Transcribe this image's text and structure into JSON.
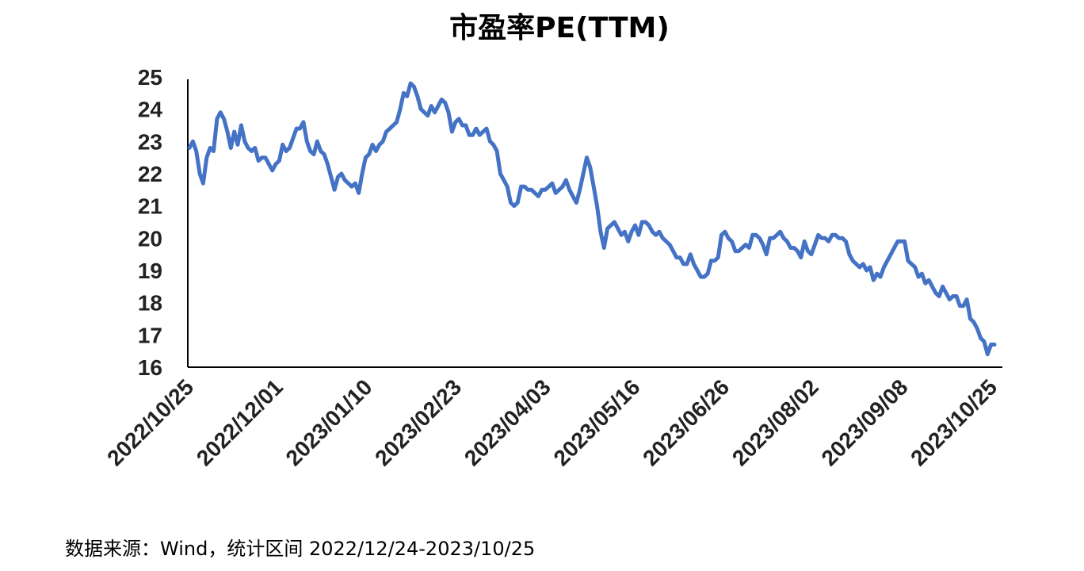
{
  "chart_data": {
    "type": "line",
    "title": "市盈率PE(TTM)",
    "xlabel": "",
    "ylabel": "",
    "ylim": [
      16,
      25
    ],
    "yticks": [
      25,
      24,
      23,
      22,
      21,
      20,
      19,
      18,
      17,
      16
    ],
    "xtick_labels": [
      "2022/10/25",
      "2022/12/01",
      "2023/01/10",
      "2023/02/23",
      "2023/04/03",
      "2023/05/16",
      "2023/06/26",
      "2023/08/02",
      "2023/09/08",
      "2023/10/25"
    ],
    "grid": false,
    "legend": "none",
    "line_color": "#4472C4",
    "series": [
      {
        "values": [
          22.8,
          23.0,
          22.7,
          22.0,
          21.7,
          22.5,
          22.8,
          22.7,
          23.7,
          23.9,
          23.7,
          23.3,
          22.8,
          23.3,
          22.9,
          23.5,
          23.0,
          22.8,
          22.7,
          22.8,
          22.4,
          22.5,
          22.5,
          22.3,
          22.1,
          22.3,
          22.4,
          22.9,
          22.7,
          22.8,
          23.1,
          23.4,
          23.4,
          23.6,
          23.0,
          22.7,
          22.6,
          23.0,
          22.7,
          22.6,
          22.3,
          21.9,
          21.5,
          21.9,
          22.0,
          21.8,
          21.7,
          21.6,
          21.7,
          21.4,
          22.0,
          22.5,
          22.6,
          22.9,
          22.7,
          22.9,
          23.0,
          23.3,
          23.4,
          23.5,
          23.6,
          24.0,
          24.5,
          24.4,
          24.8,
          24.7,
          24.4,
          24.0,
          23.9,
          23.8,
          24.1,
          23.9,
          24.1,
          24.3,
          24.2,
          23.9,
          23.3,
          23.6,
          23.7,
          23.5,
          23.5,
          23.2,
          23.2,
          23.4,
          23.2,
          23.3,
          23.4,
          23.0,
          22.9,
          22.7,
          22.0,
          21.8,
          21.6,
          21.1,
          21.0,
          21.1,
          21.6,
          21.6,
          21.5,
          21.5,
          21.4,
          21.3,
          21.5,
          21.5,
          21.6,
          21.7,
          21.4,
          21.5,
          21.6,
          21.8,
          21.5,
          21.3,
          21.1,
          21.5,
          22.0,
          22.5,
          22.2,
          21.6,
          21.0,
          20.2,
          19.7,
          20.3,
          20.4,
          20.5,
          20.3,
          20.1,
          20.2,
          19.9,
          20.2,
          20.4,
          20.1,
          20.5,
          20.5,
          20.4,
          20.2,
          20.1,
          20.2,
          20.0,
          19.9,
          19.8,
          19.6,
          19.4,
          19.4,
          19.2,
          19.2,
          19.5,
          19.2,
          19.0,
          18.8,
          18.8,
          18.9,
          19.3,
          19.3,
          19.4,
          20.1,
          20.2,
          20.0,
          19.9,
          19.6,
          19.6,
          19.7,
          19.8,
          19.7,
          20.1,
          20.1,
          20.0,
          19.8,
          19.5,
          20.0,
          20.0,
          20.1,
          20.2,
          20.0,
          19.9,
          19.7,
          19.7,
          19.6,
          19.4,
          19.9,
          19.6,
          19.5,
          19.8,
          20.1,
          20.0,
          20.0,
          19.9,
          20.1,
          20.1,
          20.0,
          20.0,
          19.9,
          19.5,
          19.3,
          19.2,
          19.1,
          19.2,
          19.0,
          19.1,
          18.7,
          18.9,
          18.8,
          19.1,
          19.3,
          19.5,
          19.7,
          19.9,
          19.9,
          19.9,
          19.3,
          19.2,
          19.1,
          18.8,
          18.9,
          18.6,
          18.7,
          18.5,
          18.3,
          18.2,
          18.5,
          18.3,
          18.1,
          18.2,
          18.2,
          17.9,
          17.9,
          18.1,
          17.5,
          17.4,
          17.2,
          16.9,
          16.8,
          16.4,
          16.7,
          16.7
        ]
      }
    ]
  },
  "source_note": "数据来源：Wind，统计区间 2022/12/24-2023/10/25"
}
